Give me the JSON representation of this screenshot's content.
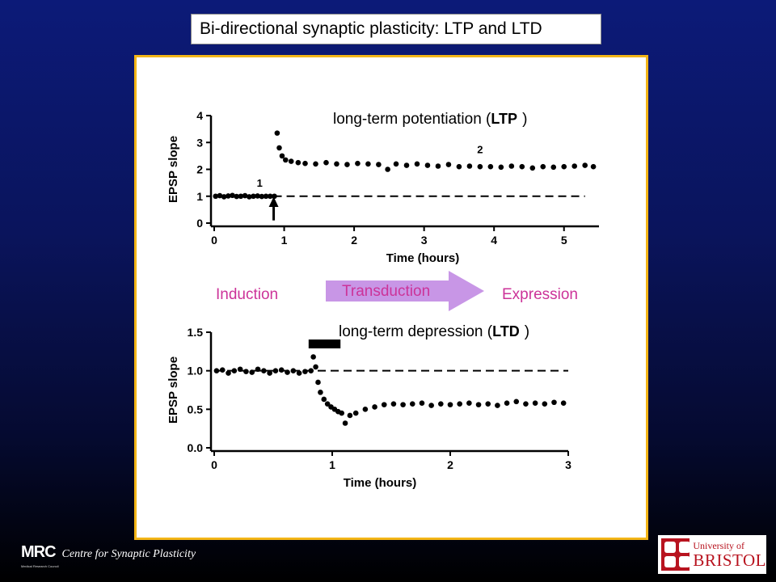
{
  "slide": {
    "title": "Bi-directional synaptic plasticity: LTP and LTD"
  },
  "figure": {
    "ltp_heading_prefix": "long-term potentiation (",
    "ltp_heading_abbr": "LTP",
    "ltp_heading_suffix": ")",
    "ltd_heading_prefix": "long-term depression (",
    "ltd_heading_abbr": "LTD",
    "ltd_heading_suffix": ")",
    "induction": "Induction",
    "transduction": "Transduction",
    "expression": "Expression",
    "ltp_marker_1": "1",
    "ltp_marker_2": "2",
    "pink_color": "#cc3399",
    "arrow_color": "#c896e6"
  },
  "chart_data": [
    {
      "type": "scatter",
      "title": "long-term potentiation (LTP)",
      "xlabel": "Time (hours)",
      "ylabel": "EPSP slope",
      "xlim": [
        0,
        5.5
      ],
      "ylim": [
        0,
        4
      ],
      "xticks": [
        "0",
        "1",
        "2",
        "3",
        "4",
        "5"
      ],
      "yticks": [
        "0",
        "1",
        "2",
        "3",
        "4"
      ],
      "baseline": 1.0,
      "stimulus_arrow_at": 0.85,
      "annotations": [
        {
          "label": "1",
          "x": 0.65,
          "y": 1.35
        },
        {
          "label": "2",
          "x": 3.8,
          "y": 2.6
        }
      ],
      "series": [
        {
          "x": [
            0.02,
            0.08,
            0.14,
            0.2,
            0.26,
            0.32,
            0.38,
            0.44,
            0.5,
            0.56,
            0.62,
            0.68,
            0.74,
            0.8,
            0.86,
            0.9,
            0.93,
            0.97,
            1.02,
            1.1,
            1.2,
            1.3,
            1.45,
            1.6,
            1.75,
            1.9,
            2.05,
            2.2,
            2.35,
            2.48,
            2.6,
            2.75,
            2.9,
            3.05,
            3.2,
            3.35,
            3.5,
            3.65,
            3.8,
            3.95,
            4.1,
            4.25,
            4.4,
            4.55,
            4.7,
            4.85,
            5.0,
            5.15,
            5.3,
            5.42
          ],
          "y": [
            1.0,
            1.02,
            0.98,
            1.01,
            1.03,
            0.99,
            1.0,
            1.02,
            0.98,
            1.0,
            1.01,
            0.99,
            1.0,
            1.0,
            1.0,
            3.35,
            2.8,
            2.5,
            2.35,
            2.3,
            2.25,
            2.22,
            2.2,
            2.25,
            2.2,
            2.18,
            2.22,
            2.2,
            2.18,
            2.0,
            2.2,
            2.15,
            2.2,
            2.15,
            2.12,
            2.18,
            2.1,
            2.12,
            2.1,
            2.1,
            2.08,
            2.12,
            2.1,
            2.05,
            2.1,
            2.08,
            2.1,
            2.12,
            2.15,
            2.1
          ]
        }
      ]
    },
    {
      "type": "scatter",
      "title": "long-term depression (LTD)",
      "xlabel": "Time (hours)",
      "ylabel": "EPSP slope",
      "xlim": [
        0,
        3
      ],
      "ylim": [
        0,
        1.5
      ],
      "xticks": [
        "0",
        "1",
        "2",
        "3"
      ],
      "yticks": [
        "0.0",
        "0.5",
        "1.0",
        "1.5"
      ],
      "baseline": 1.0,
      "stimulus_bar": [
        0.8,
        1.07
      ],
      "series": [
        {
          "x": [
            0.02,
            0.07,
            0.12,
            0.17,
            0.22,
            0.27,
            0.32,
            0.37,
            0.42,
            0.47,
            0.52,
            0.57,
            0.62,
            0.67,
            0.72,
            0.77,
            0.82,
            0.84,
            0.86,
            0.88,
            0.9,
            0.93,
            0.96,
            0.99,
            1.02,
            1.05,
            1.08,
            1.11,
            1.15,
            1.2,
            1.28,
            1.36,
            1.44,
            1.52,
            1.6,
            1.68,
            1.76,
            1.84,
            1.92,
            2.0,
            2.08,
            2.16,
            2.24,
            2.32,
            2.4,
            2.48,
            2.56,
            2.64,
            2.72,
            2.8,
            2.88,
            2.96
          ],
          "y": [
            1.0,
            1.01,
            0.97,
            1.0,
            1.02,
            0.99,
            0.98,
            1.02,
            1.0,
            0.97,
            1.0,
            1.01,
            0.98,
            1.0,
            0.97,
            0.99,
            1.0,
            1.18,
            1.05,
            0.85,
            0.72,
            0.63,
            0.57,
            0.53,
            0.5,
            0.47,
            0.45,
            0.32,
            0.42,
            0.45,
            0.5,
            0.53,
            0.56,
            0.57,
            0.56,
            0.57,
            0.58,
            0.55,
            0.57,
            0.56,
            0.57,
            0.58,
            0.56,
            0.57,
            0.55,
            0.58,
            0.6,
            0.57,
            0.58,
            0.57,
            0.59,
            0.58
          ]
        }
      ]
    }
  ],
  "footer": {
    "mrc_logo": "MRC",
    "mrc_subtext": "Medical Research Council",
    "centre_name": "Centre for Synaptic Plasticity",
    "university_of": "University of",
    "bristol": "BRISTOL"
  }
}
